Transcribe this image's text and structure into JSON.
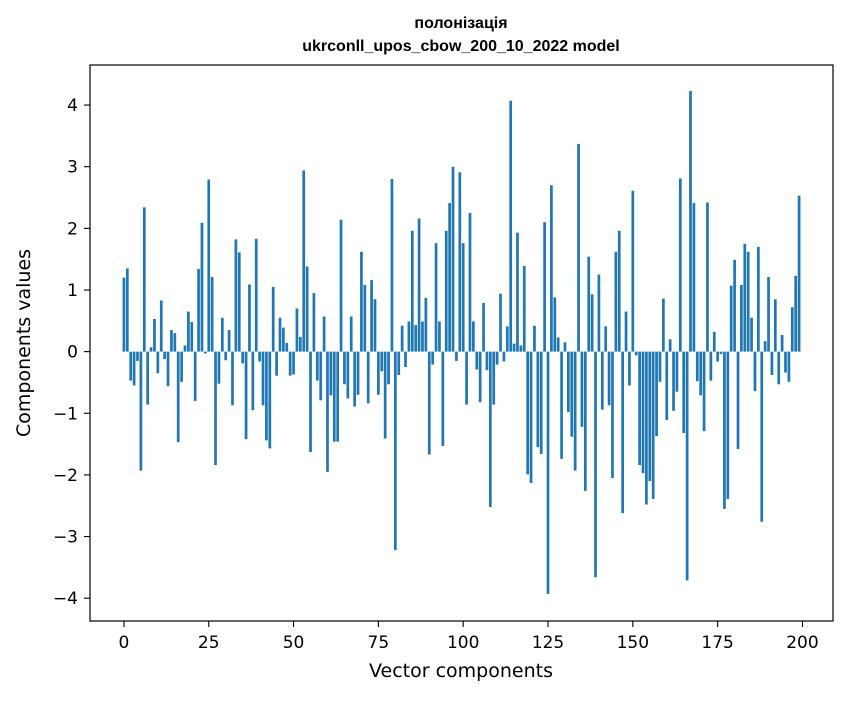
{
  "chart_data": {
    "type": "bar",
    "title_line1": "полонізація",
    "title_line2": "ukrconll_upos_cbow_200_10_2022 model",
    "xlabel": "Vector components",
    "ylabel": "Components values",
    "xlim": [
      -10,
      209
    ],
    "ylim": [
      -4.37,
      4.65
    ],
    "xticks": [
      0,
      25,
      50,
      75,
      100,
      125,
      150,
      175,
      200
    ],
    "yticks": [
      -4,
      -3,
      -2,
      -1,
      0,
      1,
      2,
      3,
      4
    ],
    "xtick_labels": [
      "0",
      "25",
      "50",
      "75",
      "100",
      "125",
      "150",
      "175",
      "200"
    ],
    "ytick_labels": [
      "−4",
      "−3",
      "−2",
      "−1",
      "0",
      "1",
      "2",
      "3",
      "4"
    ],
    "grid": false,
    "bar_color": "#1f77b4",
    "x": [
      0,
      1,
      2,
      3,
      4,
      5,
      6,
      7,
      8,
      9,
      10,
      11,
      12,
      13,
      14,
      15,
      16,
      17,
      18,
      19,
      20,
      21,
      22,
      23,
      24,
      25,
      26,
      27,
      28,
      29,
      30,
      31,
      32,
      33,
      34,
      35,
      36,
      37,
      38,
      39,
      40,
      41,
      42,
      43,
      44,
      45,
      46,
      47,
      48,
      49,
      50,
      51,
      52,
      53,
      54,
      55,
      56,
      57,
      58,
      59,
      60,
      61,
      62,
      63,
      64,
      65,
      66,
      67,
      68,
      69,
      70,
      71,
      72,
      73,
      74,
      75,
      76,
      77,
      78,
      79,
      80,
      81,
      82,
      83,
      84,
      85,
      86,
      87,
      88,
      89,
      90,
      91,
      92,
      93,
      94,
      95,
      96,
      97,
      98,
      99,
      100,
      101,
      102,
      103,
      104,
      105,
      106,
      107,
      108,
      109,
      110,
      111,
      112,
      113,
      114,
      115,
      116,
      117,
      118,
      119,
      120,
      121,
      122,
      123,
      124,
      125,
      126,
      127,
      128,
      129,
      130,
      131,
      132,
      133,
      134,
      135,
      136,
      137,
      138,
      139,
      140,
      141,
      142,
      143,
      144,
      145,
      146,
      147,
      148,
      149,
      150,
      151,
      152,
      153,
      154,
      155,
      156,
      157,
      158,
      159,
      160,
      161,
      162,
      163,
      164,
      165,
      166,
      167,
      168,
      169,
      170,
      171,
      172,
      173,
      174,
      175,
      176,
      177,
      178,
      179,
      180,
      181,
      182,
      183,
      184,
      185,
      186,
      187,
      188,
      189,
      190,
      191,
      192,
      193,
      194,
      195,
      196,
      197,
      198,
      199
    ],
    "values": [
      1.2,
      1.35,
      -0.47,
      -0.55,
      -0.15,
      -1.93,
      2.34,
      -0.86,
      0.07,
      0.53,
      -0.35,
      0.83,
      -0.12,
      -0.56,
      0.35,
      0.3,
      -1.47,
      -0.49,
      0.1,
      0.65,
      0.48,
      -0.8,
      1.34,
      2.09,
      -0.03,
      2.79,
      1.21,
      -1.84,
      -0.52,
      0.55,
      -0.14,
      0.35,
      -0.87,
      1.82,
      1.61,
      -0.19,
      -1.42,
      1.09,
      -0.95,
      1.83,
      -0.16,
      -0.87,
      -1.44,
      -1.57,
      1.05,
      -0.39,
      0.55,
      0.39,
      0.14,
      -0.39,
      -0.37,
      0.7,
      0.24,
      2.94,
      1.38,
      -1.63,
      0.95,
      -0.47,
      -0.79,
      0.57,
      -1.95,
      -0.71,
      -1.46,
      -1.46,
      2.14,
      -0.53,
      -0.76,
      0.57,
      -0.89,
      -0.7,
      1.62,
      1.08,
      -0.84,
      1.16,
      0.85,
      -0.7,
      -0.32,
      -1.41,
      -0.53,
      2.8,
      -3.22,
      -0.38,
      0.42,
      -0.25,
      0.49,
      1.96,
      0.43,
      2.16,
      0.49,
      0.87,
      -1.67,
      -0.21,
      1.76,
      0.49,
      -1.53,
      1.96,
      2.41,
      3.0,
      -0.15,
      2.91,
      1.76,
      -0.86,
      2.25,
      0.49,
      -0.29,
      -0.82,
      0.79,
      -0.3,
      -2.52,
      -0.86,
      -0.21,
      0.94,
      -0.16,
      0.41,
      4.07,
      0.13,
      1.93,
      0.1,
      1.39,
      -1.99,
      -2.13,
      0.42,
      -1.55,
      -1.66,
      2.1,
      -3.93,
      2.7,
      0.88,
      0.23,
      -1.74,
      0.15,
      -0.98,
      -1.38,
      -1.93,
      3.37,
      -1.22,
      -2.26,
      1.54,
      0.93,
      -3.66,
      1.25,
      -0.94,
      0.41,
      -0.87,
      -2.05,
      1.62,
      1.96,
      -2.62,
      0.65,
      -0.55,
      2.61,
      -0.06,
      -1.84,
      -1.97,
      -2.48,
      -2.1,
      -2.39,
      -1.37,
      -0.49,
      0.86,
      -1.11,
      0.2,
      -0.96,
      -0.65,
      2.81,
      -1.32,
      -3.71,
      4.23,
      2.41,
      -0.48,
      -0.71,
      -1.29,
      2.42,
      -0.47,
      0.32,
      -0.16,
      -0.04,
      -2.55,
      -2.39,
      1.07,
      1.49,
      -1.58,
      1.08,
      1.75,
      1.62,
      0.55,
      -0.64,
      1.7,
      -2.76,
      0.17,
      1.21,
      -0.38,
      0.85,
      -0.53,
      0.27,
      -0.34,
      -0.49,
      0.72,
      1.23,
      2.53
    ]
  }
}
